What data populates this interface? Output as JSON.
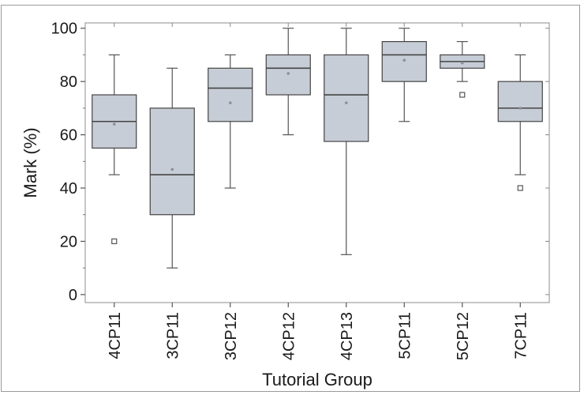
{
  "chart_data": {
    "type": "boxplot",
    "title": "",
    "xlabel": "Tutorial Group",
    "ylabel": "Mark (%)",
    "ylim": [
      0,
      100
    ],
    "yticks": [
      0,
      20,
      40,
      60,
      80,
      100
    ],
    "grid": false,
    "colors": {
      "box_fill": "#c7cdd6",
      "box_stroke": "#444444",
      "whisker": "#555555",
      "outlier": "#555555",
      "mean": "#8a8f96"
    },
    "categories": [
      "4CP11",
      "3CP11",
      "3CP12",
      "4CP12",
      "4CP13",
      "5CP11",
      "5CP12",
      "7CP11"
    ],
    "boxes": [
      {
        "group": "4CP11",
        "min": 45,
        "q1": 55,
        "median": 65,
        "q3": 75,
        "max": 90,
        "mean": 64,
        "outliers": [
          20
        ]
      },
      {
        "group": "3CP11",
        "min": 10,
        "q1": 30,
        "median": 45,
        "q3": 70,
        "max": 85,
        "mean": 47,
        "outliers": []
      },
      {
        "group": "3CP12",
        "min": 40,
        "q1": 65,
        "median": 77.5,
        "q3": 85,
        "max": 90,
        "mean": 72,
        "outliers": []
      },
      {
        "group": "4CP12",
        "min": 60,
        "q1": 75,
        "median": 85,
        "q3": 90,
        "max": 100,
        "mean": 83,
        "outliers": []
      },
      {
        "group": "4CP13",
        "min": 15,
        "q1": 57.5,
        "median": 75,
        "q3": 90,
        "max": 100,
        "mean": 72,
        "outliers": []
      },
      {
        "group": "5CP11",
        "min": 65,
        "q1": 80,
        "median": 90,
        "q3": 95,
        "max": 100,
        "mean": 88,
        "outliers": []
      },
      {
        "group": "5CP12",
        "min": 80,
        "q1": 85,
        "median": 87.5,
        "q3": 90,
        "max": 95,
        "mean": 87,
        "outliers": [
          75
        ]
      },
      {
        "group": "7CP11",
        "min": 45,
        "q1": 65,
        "median": 70,
        "q3": 80,
        "max": 90,
        "mean": 70,
        "outliers": [
          40
        ]
      }
    ]
  }
}
